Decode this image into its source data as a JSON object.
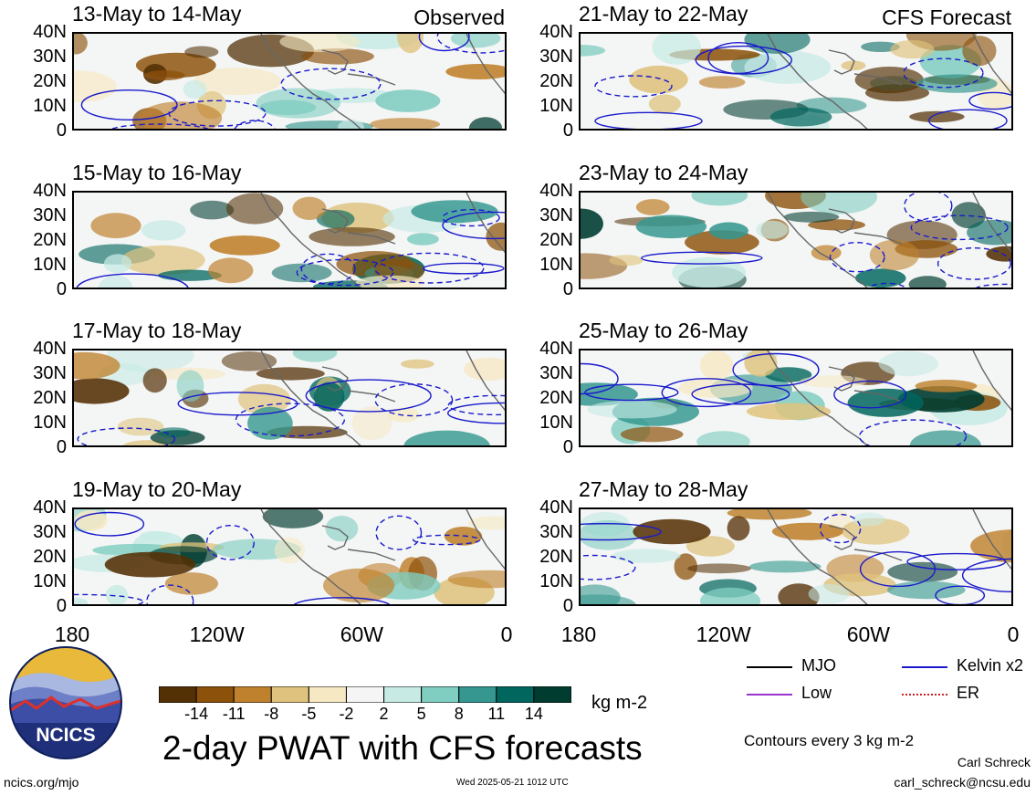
{
  "panels": [
    {
      "title": "13-May to 14-May",
      "tag": "Observed"
    },
    {
      "title": "21-May to 22-May",
      "tag": "CFS Forecast"
    },
    {
      "title": "15-May to 16-May",
      "tag": ""
    },
    {
      "title": "23-May to 24-May",
      "tag": ""
    },
    {
      "title": "17-May to 18-May",
      "tag": ""
    },
    {
      "title": "25-May to 26-May",
      "tag": ""
    },
    {
      "title": "19-May to 20-May",
      "tag": ""
    },
    {
      "title": "27-May to 28-May",
      "tag": ""
    }
  ],
  "axes": {
    "y_ticks": [
      "40N",
      "30N",
      "20N",
      "10N",
      "0"
    ],
    "x_ticks": [
      "180",
      "120W",
      "60W",
      "0"
    ]
  },
  "colorbar": {
    "labels": [
      "-14",
      "-11",
      "-8",
      "-5",
      "-2",
      "2",
      "5",
      "8",
      "11",
      "14"
    ],
    "colors": [
      "#543005",
      "#8c510a",
      "#bf812d",
      "#dfc27d",
      "#f6e8c3",
      "#f5f5f5",
      "#c7eae5",
      "#80cdc1",
      "#35978f",
      "#01665e",
      "#003c30"
    ],
    "units": "kg m-2"
  },
  "legend": {
    "items": [
      {
        "label": "MJO",
        "color": "#000000",
        "style": "solid"
      },
      {
        "label": "Kelvin x2",
        "color": "#1a1acc",
        "style": "solid"
      },
      {
        "label": "Low",
        "color": "#9933cc",
        "style": "solid"
      },
      {
        "label": "ER",
        "color": "#cc2222",
        "style": "dotted"
      }
    ],
    "contour_note": "Contours every 3 kg m-2"
  },
  "footer": {
    "main_title": "2-day PWAT with CFS forecasts",
    "logo_text": "NCICS",
    "url": "ncics.org/mjo",
    "timestamp": "Wed 2025-05-21 1012 UTC",
    "author": "Carl Schreck",
    "email": "carl_schreck@ncsu.edu"
  },
  "chart_data": {
    "type": "heatmap",
    "variable": "2-day PWAT anomaly",
    "units": "kg m-2",
    "x_range": [
      "180",
      "0"
    ],
    "y_range": [
      "0",
      "40N"
    ],
    "periods": [
      "13-May to 14-May",
      "15-May to 16-May",
      "17-May to 18-May",
      "19-May to 20-May",
      "21-May to 22-May",
      "23-May to 24-May",
      "25-May to 26-May",
      "27-May to 28-May"
    ],
    "contour_levels": [
      "-14",
      "-11",
      "-8",
      "-5",
      "-2",
      "2",
      "5",
      "8",
      "11",
      "14"
    ],
    "contour_interval": "3 kg m-2"
  }
}
